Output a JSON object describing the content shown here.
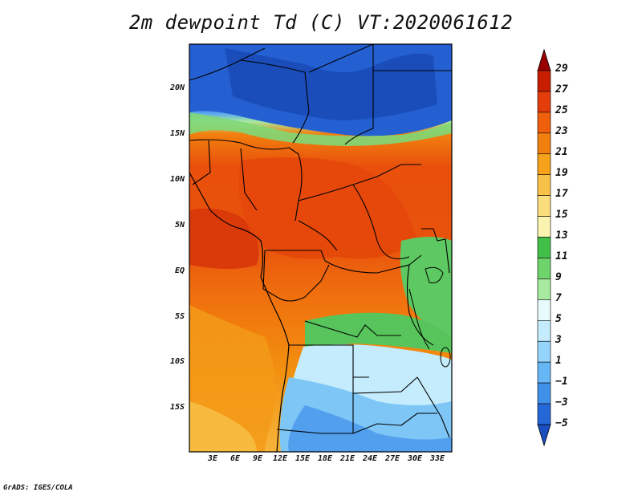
{
  "title": "2m dewpoint Td (C) VT:2020061612",
  "credit": "GrADS: IGES/COLA",
  "map": {
    "lat_labels": [
      "20N",
      "15N",
      "10N",
      "5N",
      "EQ",
      "5S",
      "10S",
      "15S"
    ],
    "lon_labels": [
      "3E",
      "6E",
      "9E",
      "12E",
      "15E",
      "18E",
      "21E",
      "24E",
      "27E",
      "30E",
      "33E"
    ]
  },
  "colorbar": {
    "labels": [
      "29",
      "27",
      "25",
      "23",
      "21",
      "19",
      "17",
      "15",
      "13",
      "11",
      "9",
      "7",
      "5",
      "3",
      "1",
      "−1",
      "−3",
      "−5"
    ],
    "colors": [
      "#9a0000",
      "#c81e00",
      "#e43c0a",
      "#f0600c",
      "#f2800f",
      "#f6a21b",
      "#f8c24a",
      "#fadd7c",
      "#fbf3b0",
      "#41c04a",
      "#6fd46c",
      "#a7eaa0",
      "#e7fbfd",
      "#c4ecfd",
      "#95d4fb",
      "#66b6f5",
      "#3f90e8",
      "#2468d8",
      "#1a4fc0"
    ]
  }
}
